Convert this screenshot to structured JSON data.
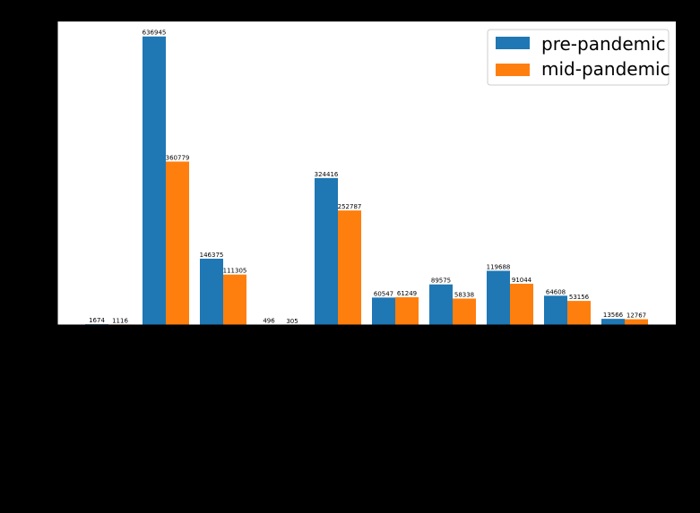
{
  "chart_data": {
    "type": "bar",
    "categories": [
      "",
      "",
      "",
      "",
      "",
      "",
      "",
      "",
      "",
      ""
    ],
    "series": [
      {
        "name": "pre-pandemic",
        "color": "#1f77b4",
        "values": [
          1674,
          636945,
          146375,
          496,
          324416,
          60547,
          89575,
          119688,
          64608,
          13566
        ]
      },
      {
        "name": "mid-pandemic",
        "color": "#ff7f0e",
        "values": [
          1116,
          360779,
          111305,
          305,
          252787,
          61249,
          58338,
          91044,
          53156,
          12767
        ]
      }
    ],
    "data_labels": true,
    "legend": {
      "position": "top-right"
    },
    "ylim": [
      0,
      670000
    ],
    "grid": false,
    "title": "",
    "xlabel": "",
    "ylabel": ""
  },
  "colors": {
    "figure_background": "#000000",
    "plot_background": "#ffffff",
    "axis": "#000000"
  }
}
